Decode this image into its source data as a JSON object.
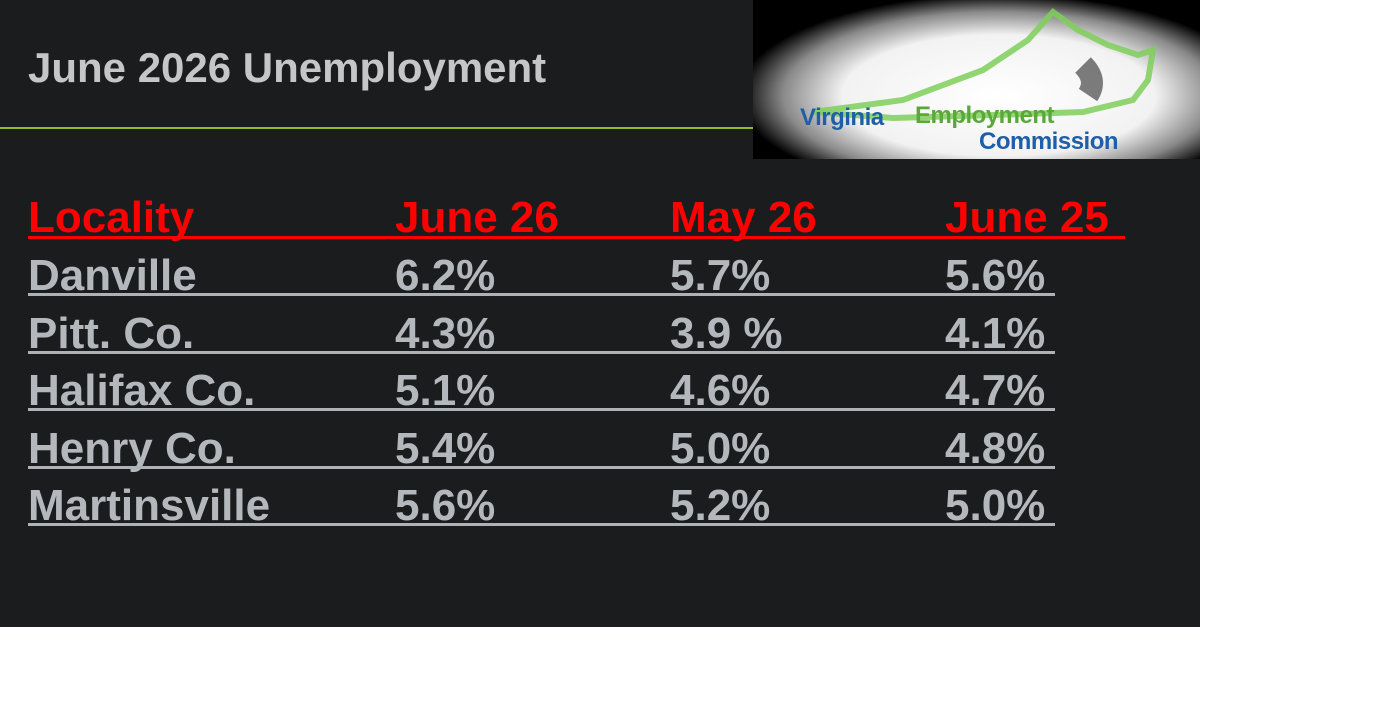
{
  "header": {
    "title": "June 2026 Unemployment"
  },
  "logo": {
    "words": [
      "Virginia",
      "Employment",
      "Commission"
    ]
  },
  "table": {
    "columns": [
      "Locality",
      "June 26",
      "May 26",
      "June 25"
    ],
    "rows": [
      [
        "Danville",
        "6.2%",
        "5.7%",
        "5.6%"
      ],
      [
        "Pitt. Co.",
        "4.3%",
        "3.9 %",
        "4.1%"
      ],
      [
        "Halifax Co.",
        "5.1%",
        "4.6%",
        "4.7%"
      ],
      [
        "Henry Co.",
        "5.4%",
        "5.0%",
        "4.8%"
      ],
      [
        "Martinsville",
        "5.6%",
        "5.2%",
        "5.0%"
      ]
    ]
  }
}
